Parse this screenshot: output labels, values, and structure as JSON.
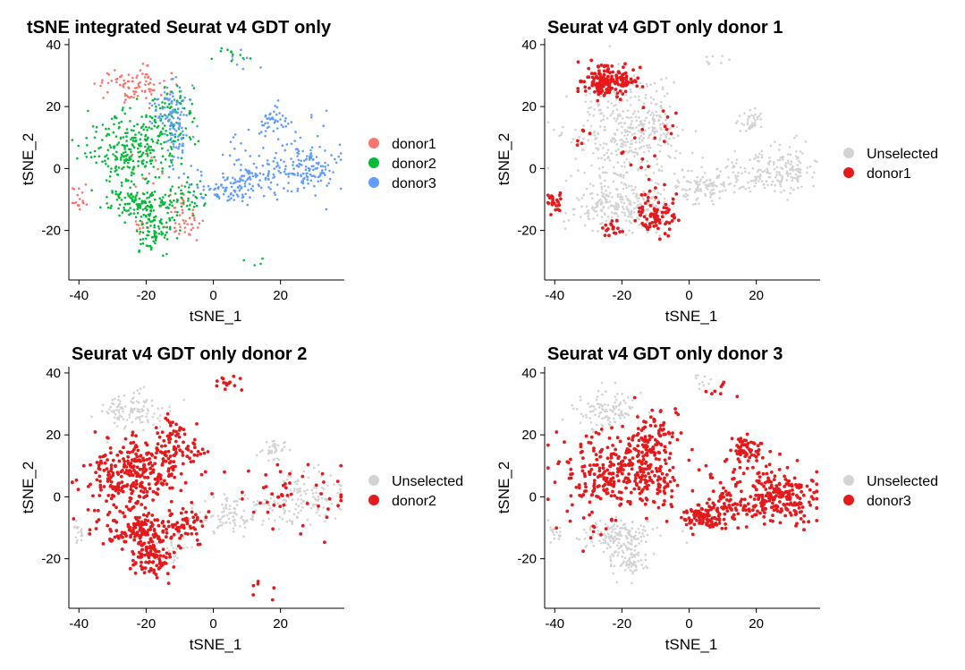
{
  "chart_data": [
    {
      "type": "scatter",
      "title": "tSNE integrated Seurat v4 GDT only",
      "xlabel": "tSNE_1",
      "ylabel": "tSNE_2",
      "xlim": [
        -43,
        39
      ],
      "ylim": [
        -36,
        42
      ],
      "xticks": [
        -40,
        -20,
        0,
        20
      ],
      "yticks": [
        -20,
        0,
        20,
        40
      ],
      "legend_position": "right",
      "series": [
        {
          "name": "donor1",
          "color": "#F8766D",
          "clusters": [
            [
              -24,
              27,
              5,
              3,
              90
            ],
            [
              -40,
              -10,
              1.2,
              1.8,
              18
            ],
            [
              -22,
              -19,
              1.5,
              1.5,
              12
            ],
            [
              -10,
              -17,
              3.5,
              2.5,
              40
            ],
            [
              -10,
              -11,
              2,
              2,
              14
            ],
            [
              -19,
              0,
              4,
              4,
              10
            ]
          ]
        },
        {
          "name": "donor2",
          "color": "#00BA38",
          "clusters": [
            [
              -24,
              7,
              7,
              6,
              260
            ],
            [
              -12,
              17,
              3,
              5,
              80
            ],
            [
              -22,
              -11,
              6,
              2.5,
              130
            ],
            [
              -18,
              -20,
              3,
              3.5,
              90
            ],
            [
              -8,
              -9,
              3,
              3,
              40
            ],
            [
              5,
              37,
              2.5,
              1.5,
              12
            ],
            [
              12,
              -30,
              1.5,
              1,
              4
            ]
          ]
        },
        {
          "name": "donor3",
          "color": "#619CFF",
          "clusters": [
            [
              -12,
              17,
              3,
              5,
              90
            ],
            [
              -10,
              5,
              3,
              5,
              30
            ],
            [
              4,
              -7,
              4,
              2,
              70
            ],
            [
              12,
              -3,
              6,
              3,
              70
            ],
            [
              28,
              0,
              5,
              4,
              130
            ],
            [
              18,
              15,
              2,
              2,
              40
            ],
            [
              8,
              35,
              3,
              1.5,
              8
            ],
            [
              15,
              5,
              10,
              6,
              40
            ]
          ]
        }
      ]
    },
    {
      "type": "scatter",
      "title": "Seurat v4 GDT only donor 1",
      "xlabel": "tSNE_1",
      "ylabel": "tSNE_2",
      "xlim": [
        -43,
        39
      ],
      "ylim": [
        -36,
        42
      ],
      "xticks": [
        -40,
        -20,
        0,
        20
      ],
      "yticks": [
        -20,
        0,
        20,
        40
      ],
      "legend_position": "right",
      "series": [
        {
          "name": "Unselected",
          "color": "#D3D3D3",
          "clusters": [
            [
              -20,
              10,
              8,
              8,
              340
            ],
            [
              -20,
              -12,
              8,
              4,
              260
            ],
            [
              4,
              -7,
              4,
              2,
              70
            ],
            [
              14,
              -3,
              8,
              3,
              90
            ],
            [
              28,
              0,
              5,
              4,
              130
            ],
            [
              18,
              15,
              2,
              2,
              40
            ],
            [
              8,
              35,
              3,
              1.5,
              8
            ],
            [
              -10,
              17,
              3,
              5,
              60
            ]
          ]
        },
        {
          "name": "donor1",
          "color": "#E41A1C",
          "clusters": [
            [
              -24,
              28,
              4,
              2.5,
              160
            ],
            [
              -40,
              -11,
              1.2,
              1.8,
              22
            ],
            [
              -23,
              -19,
              1.5,
              1.5,
              18
            ],
            [
              -10,
              -14,
              3.5,
              3.5,
              80
            ],
            [
              -12,
              8,
              5,
              8,
              20
            ],
            [
              -30,
              10,
              3,
              3,
              6
            ]
          ]
        }
      ]
    },
    {
      "type": "scatter",
      "title": "Seurat v4 GDT only donor 2",
      "xlabel": "tSNE_1",
      "ylabel": "tSNE_2",
      "xlim": [
        -43,
        39
      ],
      "ylim": [
        -36,
        42
      ],
      "xticks": [
        -40,
        -20,
        0,
        20
      ],
      "yticks": [
        -20,
        0,
        20,
        40
      ],
      "legend_position": "right",
      "series": [
        {
          "name": "Unselected",
          "color": "#D3D3D3",
          "clusters": [
            [
              -24,
              28,
              5,
              3,
              110
            ],
            [
              -40,
              -11,
              1.2,
              1.8,
              18
            ],
            [
              -12,
              -17,
              3,
              2.5,
              30
            ],
            [
              4,
              -7,
              4,
              2,
              60
            ],
            [
              28,
              0,
              5,
              4,
              120
            ],
            [
              18,
              15,
              2,
              2,
              40
            ],
            [
              12,
              -3,
              6,
              3,
              60
            ]
          ]
        },
        {
          "name": "donor2",
          "color": "#E41A1C",
          "clusters": [
            [
              -24,
              7,
              7,
              6,
              280
            ],
            [
              -12,
              17,
              3,
              5,
              80
            ],
            [
              -22,
              -11,
              6,
              2.5,
              140
            ],
            [
              -18,
              -20,
              3,
              3.5,
              100
            ],
            [
              -8,
              -9,
              3,
              3,
              50
            ],
            [
              5,
              37,
              2.5,
              1.5,
              14
            ],
            [
              24,
              0,
              10,
              5,
              50
            ],
            [
              12,
              -30,
              3,
              1.5,
              6
            ],
            [
              -5,
              15,
              3,
              3,
              10
            ]
          ]
        }
      ]
    },
    {
      "type": "scatter",
      "title": "Seurat v4 GDT only donor 3",
      "xlabel": "tSNE_1",
      "ylabel": "tSNE_2",
      "xlim": [
        -43,
        39
      ],
      "ylim": [
        -36,
        42
      ],
      "xticks": [
        -40,
        -20,
        0,
        20
      ],
      "yticks": [
        -20,
        0,
        20,
        40
      ],
      "legend_position": "right",
      "series": [
        {
          "name": "Unselected",
          "color": "#D3D3D3",
          "clusters": [
            [
              -24,
              28,
              5,
              3,
              110
            ],
            [
              -40,
              -11,
              1.2,
              1.8,
              18
            ],
            [
              -22,
              -12,
              6,
              2.5,
              140
            ],
            [
              -18,
              -20,
              3,
              3.5,
              90
            ],
            [
              5,
              37,
              2.5,
              1.5,
              10
            ]
          ]
        },
        {
          "name": "donor3",
          "color": "#E41A1C",
          "clusters": [
            [
              -24,
              7,
              7,
              6,
              220
            ],
            [
              -12,
              16,
              4,
              6,
              150
            ],
            [
              -10,
              5,
              3,
              5,
              40
            ],
            [
              4,
              -7,
              4,
              2,
              90
            ],
            [
              12,
              -3,
              6,
              3,
              80
            ],
            [
              28,
              0,
              5,
              4,
              200
            ],
            [
              18,
              15,
              2,
              2,
              50
            ],
            [
              8,
              35,
              3,
              1.5,
              8
            ],
            [
              15,
              8,
              8,
              6,
              50
            ],
            [
              -28,
              -10,
              3,
              3,
              10
            ]
          ]
        }
      ]
    }
  ]
}
